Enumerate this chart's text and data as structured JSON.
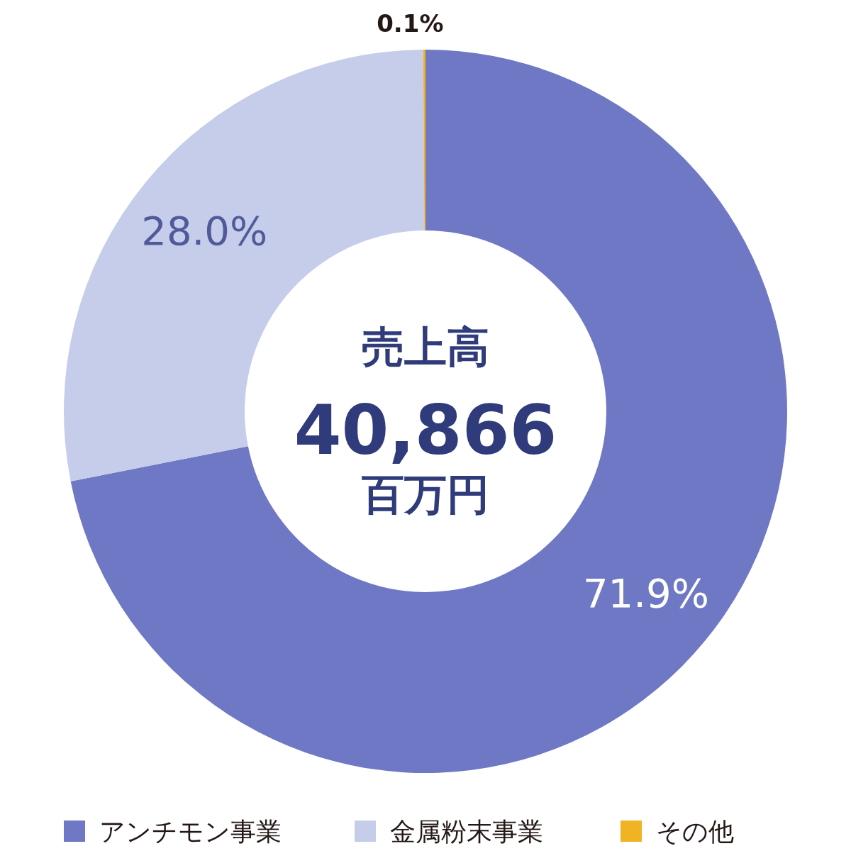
{
  "chart_data": {
    "type": "donut",
    "title": "売上高",
    "annotations": [
      "40,866",
      "百万円"
    ],
    "categories": [
      "アンチモン事業",
      "金属粉末事業",
      "その他"
    ],
    "values": [
      71.9,
      28.0,
      0.1
    ],
    "colors": [
      "#6f78c4",
      "#c5cdea",
      "#f0b323"
    ],
    "value_labels": [
      "71.9%",
      "28.0%",
      "0.1%"
    ],
    "legend": "bottom"
  }
}
